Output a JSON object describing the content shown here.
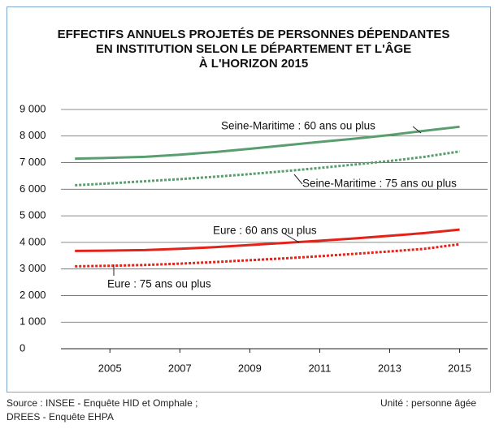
{
  "chart_data": {
    "type": "line",
    "title": [
      "EFFECTIFS ANNUELS PROJETÉS DE PERSONNES DÉPENDANTES",
      "EN INSTITUTION SELON LE DÉPARTEMENT ET L'ÂGE",
      "À L'HORIZON 2015"
    ],
    "x": [
      2004,
      2005,
      2006,
      2007,
      2008,
      2009,
      2010,
      2011,
      2012,
      2013,
      2014,
      2015
    ],
    "xlim": [
      2003.6,
      2015.8
    ],
    "xticks": [
      2005,
      2007,
      2009,
      2011,
      2013,
      2015
    ],
    "ylim": [
      0,
      9000
    ],
    "yticks": [
      0,
      {
        "value": 1000,
        "label": "1 000"
      },
      {
        "value": 2000,
        "label": "2 000"
      },
      {
        "value": 3000,
        "label": "3 000"
      },
      {
        "value": 4000,
        "label": "4 000"
      },
      {
        "value": 5000,
        "label": "5 000"
      },
      {
        "value": 6000,
        "label": "6 000"
      },
      {
        "value": 7000,
        "label": "7 000"
      },
      {
        "value": 8000,
        "label": "8 000"
      },
      {
        "value": 9000,
        "label": "9 000"
      }
    ],
    "grid": true,
    "series": [
      {
        "name": "Seine-Maritime : 60 ans ou plus",
        "color": "#5a9e6f",
        "style": "solid",
        "values": [
          7150,
          7180,
          7220,
          7300,
          7400,
          7520,
          7650,
          7780,
          7900,
          8040,
          8200,
          8350
        ]
      },
      {
        "name": "Seine-Maritime : 75 ans ou plus",
        "color": "#5a9e6f",
        "style": "dotted",
        "values": [
          6150,
          6220,
          6300,
          6380,
          6470,
          6570,
          6680,
          6800,
          6930,
          7060,
          7220,
          7420
        ]
      },
      {
        "name": "Eure : 60 ans ou plus",
        "color": "#e2231a",
        "style": "solid",
        "values": [
          3680,
          3690,
          3710,
          3760,
          3820,
          3900,
          3980,
          4060,
          4150,
          4250,
          4350,
          4480
        ]
      },
      {
        "name": "Eure : 75 ans ou plus",
        "color": "#e2231a",
        "style": "dotted",
        "values": [
          3100,
          3120,
          3150,
          3200,
          3260,
          3330,
          3400,
          3480,
          3570,
          3660,
          3760,
          3930
        ]
      }
    ]
  },
  "footer": {
    "source": [
      "Source : INSEE - Enquête HID et Omphale ;",
      "DREES - Enquête EHPA"
    ],
    "unit": "Unité : personne âgée"
  }
}
